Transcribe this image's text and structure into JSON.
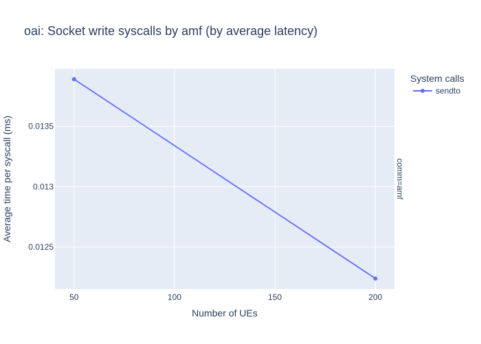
{
  "chart_data": {
    "type": "line",
    "title": "oai: Socket write syscalls by amf (by average latency)",
    "xlabel": "Number of UEs",
    "ylabel": "Average time per syscall (ms)",
    "x": [
      50,
      200
    ],
    "series": [
      {
        "name": "sendto",
        "values": [
          0.01389,
          0.01224
        ],
        "color": "#636efa"
      }
    ],
    "x_ticks": [
      50,
      100,
      150,
      200
    ],
    "x_tick_labels": [
      "50",
      "100",
      "150",
      "200"
    ],
    "y_ticks": [
      0.0125,
      0.013,
      0.0135
    ],
    "y_tick_labels": [
      "0.0125",
      "0.013",
      "0.0135"
    ],
    "xlim": [
      40.5,
      209.5
    ],
    "ylim": [
      0.012153,
      0.013976
    ],
    "grid": true,
    "legend": {
      "title": "System calls",
      "placement": "right"
    },
    "facet_label": "comm=amf",
    "colors": {
      "plot_bg": "#e5ecf6",
      "grid": "#ffffff",
      "text": "#2a3f5f"
    }
  }
}
